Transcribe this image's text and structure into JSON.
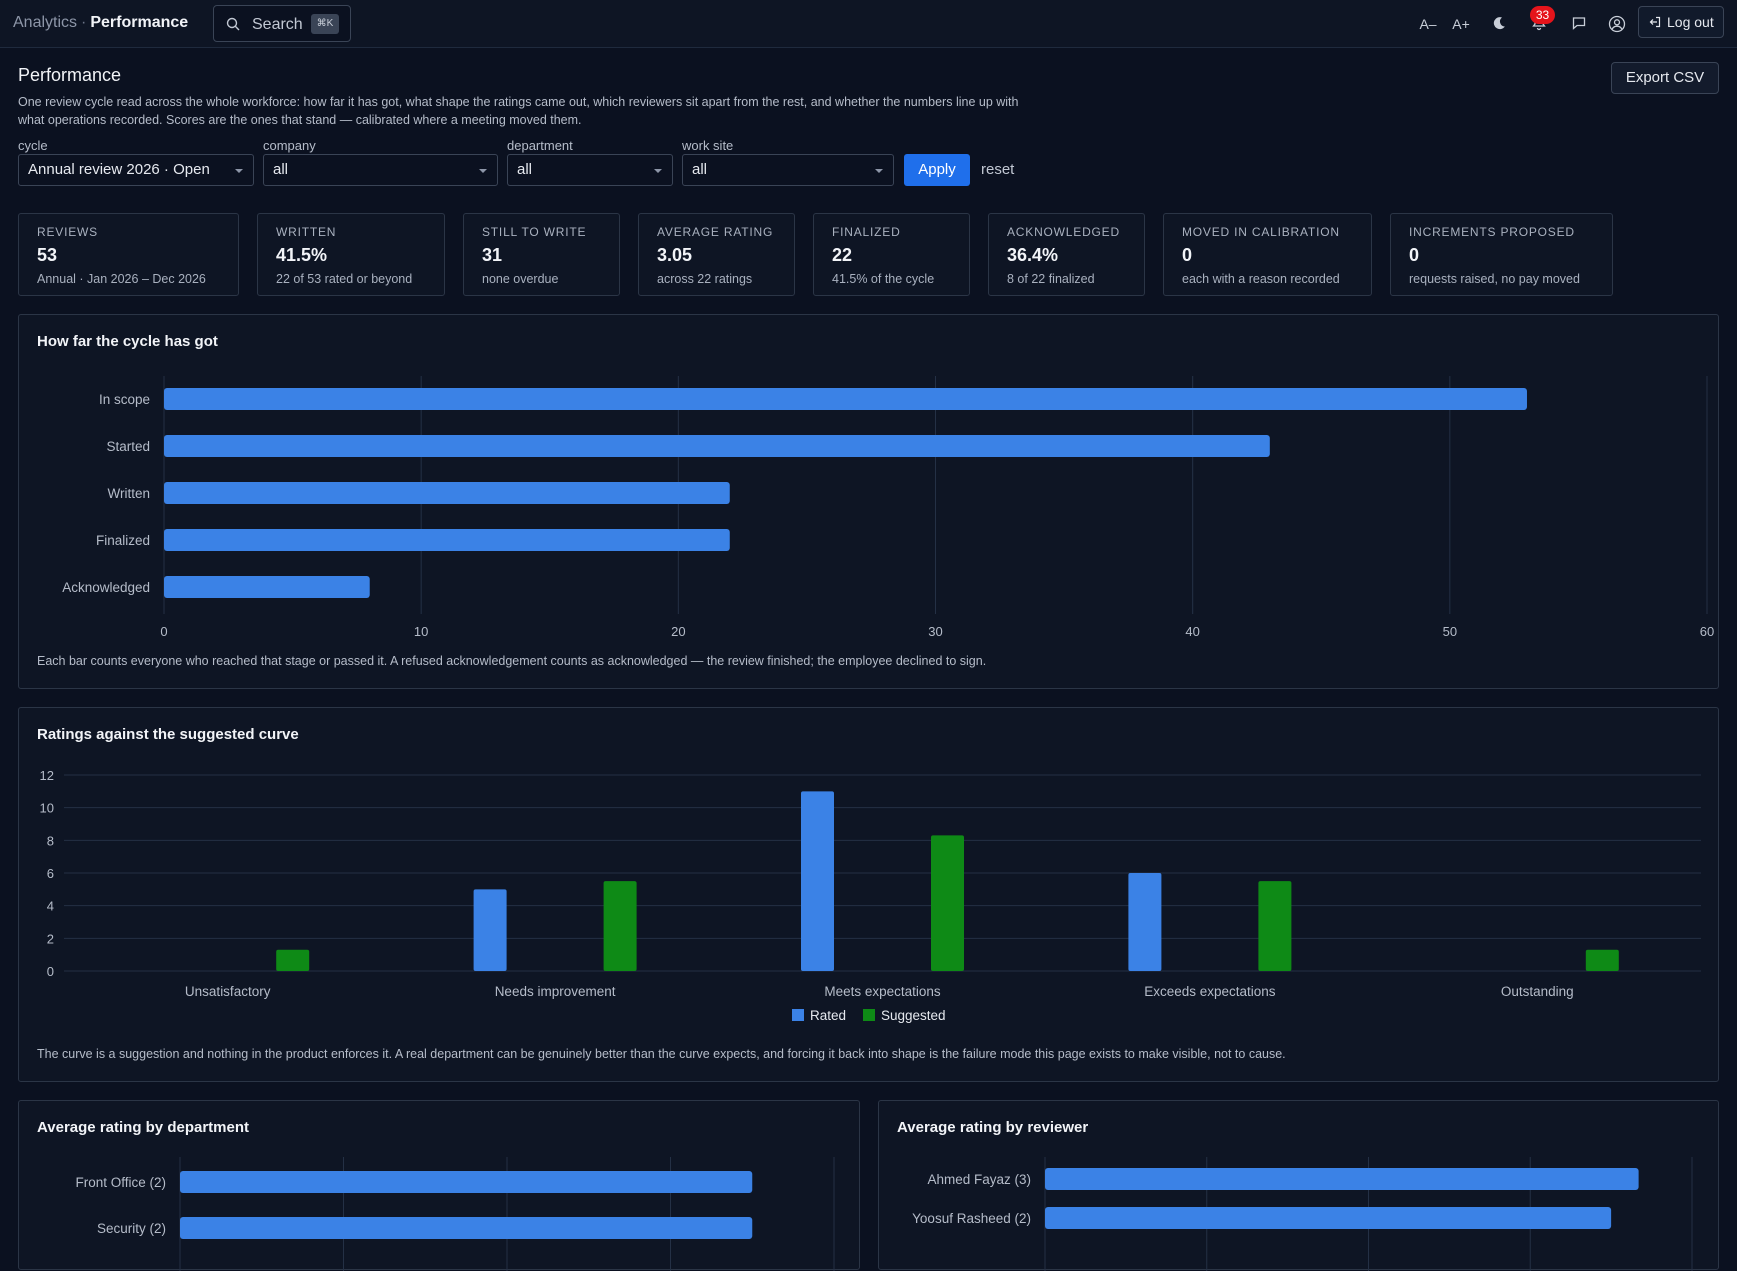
{
  "header": {
    "crumb_root": "Analytics",
    "crumb_sep": "·",
    "crumb_current": "Performance",
    "search_label": "Search",
    "search_kbd": "⌘K",
    "font_smaller": "A–",
    "font_larger": "A+",
    "notifications_count": "33",
    "logout_label": "Log out"
  },
  "page": {
    "title": "Performance",
    "description": "One review cycle read across the whole workforce: how far it has got, what shape the ratings came out, which reviewers sit apart from the rest, and whether the numbers line up with what operations recorded. Scores are the ones that stand — calibrated where a meeting moved them.",
    "export_label": "Export CSV"
  },
  "filters": {
    "cycle_label": "cycle",
    "cycle_value": "Annual review 2026 · Open",
    "company_label": "company",
    "company_value": "all",
    "department_label": "department",
    "department_value": "all",
    "worksite_label": "work site",
    "worksite_value": "all",
    "apply_label": "Apply",
    "reset_label": "reset"
  },
  "kpis": [
    {
      "title": "REVIEWS",
      "value": "53",
      "sub": "Annual · Jan 2026 – Dec 2026"
    },
    {
      "title": "WRITTEN",
      "value": "41.5%",
      "sub": "22 of 53 rated or beyond"
    },
    {
      "title": "STILL TO WRITE",
      "value": "31",
      "sub": "none overdue"
    },
    {
      "title": "AVERAGE RATING",
      "value": "3.05",
      "sub": "across 22 ratings"
    },
    {
      "title": "FINALIZED",
      "value": "22",
      "sub": "41.5% of the cycle"
    },
    {
      "title": "ACKNOWLEDGED",
      "value": "36.4%",
      "sub": "8 of 22 finalized"
    },
    {
      "title": "MOVED IN CALIBRATION",
      "value": "0",
      "sub": "each with a reason recorded"
    },
    {
      "title": "INCREMENTS PROPOSED",
      "value": "0",
      "sub": "requests raised, no pay moved"
    }
  ],
  "panels": {
    "progress_title": "How far the cycle has got",
    "progress_note": "Each bar counts everyone who reached that stage or passed it. A refused acknowledgement counts as acknowledged — the review finished; the employee declined to sign.",
    "curve_title": "Ratings against the suggested curve",
    "curve_note": "The curve is a suggestion and nothing in the product enforces it. A real department can be genuinely better than the curve expects, and forcing it back into shape is the failure mode this page exists to make visible, not to cause.",
    "dept_title": "Average rating by department",
    "reviewer_title": "Average rating by reviewer"
  },
  "colors": {
    "rated": "#3b82e6",
    "suggested": "#0e8a16",
    "accent": "#1f6feb"
  },
  "chart_data": [
    {
      "type": "bar",
      "orientation": "horizontal",
      "title": "How far the cycle has got",
      "categories": [
        "In scope",
        "Started",
        "Written",
        "Finalized",
        "Acknowledged"
      ],
      "values": [
        53,
        43,
        22,
        22,
        8
      ],
      "xlim": [
        0,
        60
      ],
      "xticks": [
        0,
        10,
        20,
        30,
        40,
        50,
        60
      ],
      "grid": true
    },
    {
      "type": "bar",
      "title": "Ratings against the suggested curve",
      "categories": [
        "Unsatisfactory",
        "Needs improvement",
        "Meets expectations",
        "Exceeds expectations",
        "Outstanding"
      ],
      "series": [
        {
          "name": "Rated",
          "values": [
            0,
            5,
            11,
            6,
            0
          ]
        },
        {
          "name": "Suggested",
          "values": [
            1.3,
            5.5,
            8.3,
            5.5,
            1.3
          ]
        }
      ],
      "ylim": [
        0,
        12
      ],
      "yticks": [
        0,
        2,
        4,
        6,
        8,
        10,
        12
      ],
      "legend": "bottom",
      "grid": true
    },
    {
      "type": "bar",
      "orientation": "horizontal",
      "title": "Average rating by department",
      "categories": [
        "Front Office (2)",
        "Security (2)"
      ],
      "values": [
        3.5,
        3.5
      ],
      "xlim": [
        0,
        4
      ],
      "grid": true
    },
    {
      "type": "bar",
      "orientation": "horizontal",
      "title": "Average rating by reviewer",
      "categories": [
        "Ahmed Fayaz (3)",
        "Yoosuf Rasheed (2)"
      ],
      "values": [
        3.67,
        3.5
      ],
      "xlim": [
        0,
        4
      ],
      "grid": true
    }
  ]
}
